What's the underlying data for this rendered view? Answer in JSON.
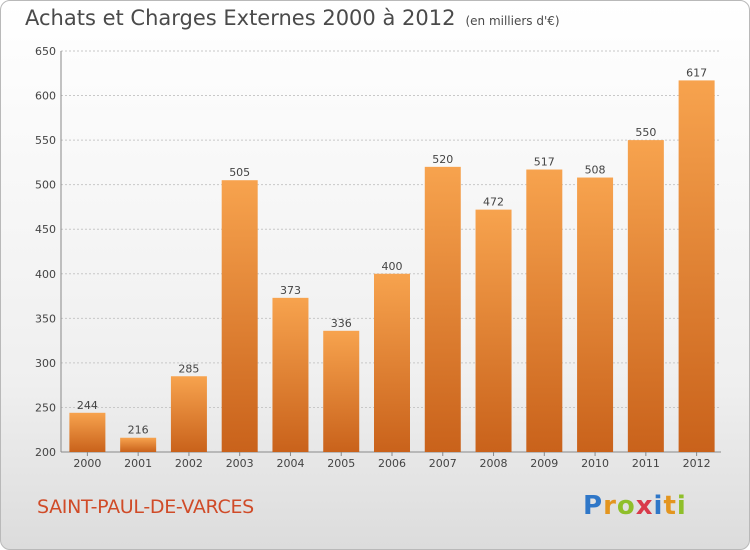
{
  "header": {
    "title": "Achats et Charges Externes 2000 à 2012",
    "unit": "(en milliers d'€)"
  },
  "footer": {
    "commune": "SAINT-PAUL-DE-VARCES",
    "logo": [
      "P",
      "r",
      "o",
      "x",
      "i",
      "t",
      "i"
    ]
  },
  "colors": {
    "bar_top": "#f7a34e",
    "bar_bottom": "#c9621b",
    "grid": "#c8c8c8",
    "text": "#444444"
  },
  "chart_data": {
    "type": "bar",
    "title": "Achats et Charges Externes 2000 à 2012",
    "subtitle": "(en milliers d'€)",
    "xlabel": "",
    "ylabel": "",
    "categories": [
      "2000",
      "2001",
      "2002",
      "2003",
      "2004",
      "2005",
      "2006",
      "2007",
      "2008",
      "2009",
      "2010",
      "2011",
      "2012"
    ],
    "values": [
      244,
      216,
      285,
      505,
      373,
      336,
      400,
      520,
      472,
      517,
      508,
      550,
      617
    ],
    "ylim": [
      200,
      650
    ],
    "yticks": [
      200,
      250,
      300,
      350,
      400,
      450,
      500,
      550,
      600,
      650
    ],
    "grid": true,
    "legend": "none"
  }
}
